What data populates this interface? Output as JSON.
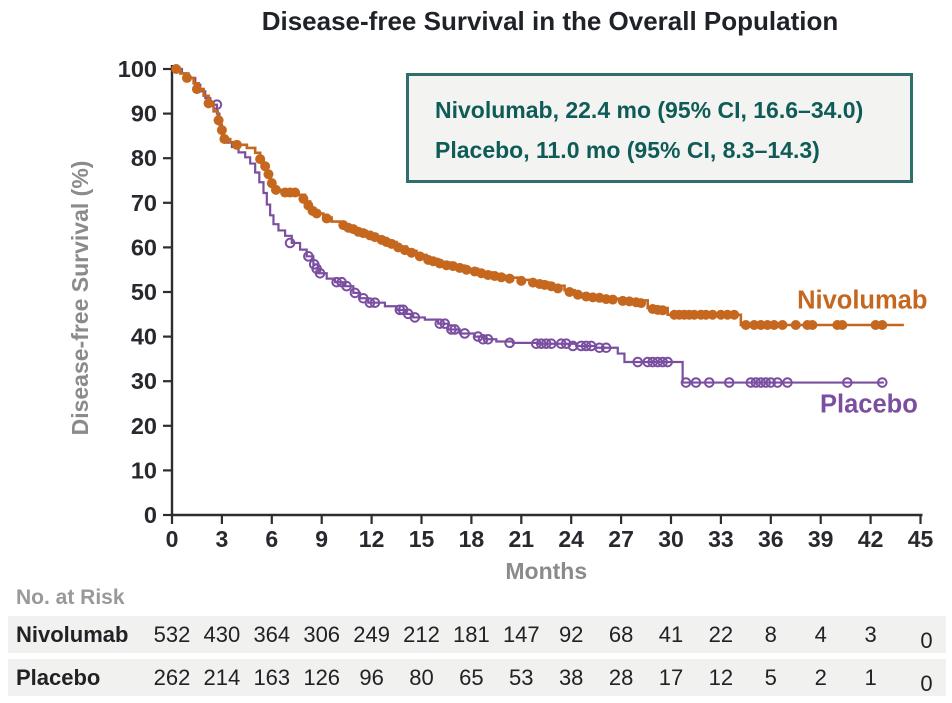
{
  "header": {
    "title": "Disease-free Survival in the Overall Population"
  },
  "legend": {
    "lines": [
      "Nivolumab, 22.4 mo (95% CI, 16.6–34.0)",
      "Placebo, 11.0 mo (95% CI, 8.3–14.3)"
    ],
    "border_color": "#2f6f6b",
    "text_color": "#0f5b57",
    "background": "#f3f4f1"
  },
  "chart_data": {
    "type": "line",
    "subtype": "kaplan-meier-step",
    "title": "Disease-free Survival in the Overall Population",
    "xlabel": "Months",
    "ylabel": "Disease-free Survival (%)",
    "xlim": [
      0,
      45
    ],
    "ylim": [
      0,
      100
    ],
    "x_ticks": [
      0,
      3,
      6,
      9,
      12,
      15,
      18,
      21,
      24,
      27,
      30,
      33,
      36,
      39,
      42,
      45
    ],
    "y_ticks": [
      0,
      10,
      20,
      30,
      40,
      50,
      60,
      70,
      80,
      90,
      100
    ],
    "grid": "off",
    "legend_position": "top-center-box",
    "axis_color": "#2b2d31",
    "tick_label_color": "#27292e",
    "axis_title_color": "#8a8b8d",
    "series": [
      {
        "name": "Placebo",
        "median_months": 11.0,
        "ci_95": "8.3-14.3",
        "color": "#7b4fa0",
        "marker": "open-circle",
        "label": {
          "x": 41.9,
          "y": 23.0
        },
        "steps": [
          [
            0,
            100
          ],
          [
            0.6,
            99
          ],
          [
            1,
            98
          ],
          [
            1.4,
            96.5
          ],
          [
            1.7,
            95
          ],
          [
            2,
            93.5
          ],
          [
            2.3,
            92
          ],
          [
            2.7,
            90
          ],
          [
            2.85,
            87.5
          ],
          [
            3,
            84.5
          ],
          [
            3.2,
            83.5
          ],
          [
            3.6,
            82.5
          ],
          [
            4,
            81.3
          ],
          [
            4.4,
            80.2
          ],
          [
            4.7,
            78.8
          ],
          [
            5,
            76.8
          ],
          [
            5.25,
            74.6
          ],
          [
            5.5,
            72.2
          ],
          [
            5.7,
            69.6
          ],
          [
            5.9,
            67.2
          ],
          [
            6.1,
            65.2
          ],
          [
            6.4,
            63.8
          ],
          [
            6.8,
            62.6
          ],
          [
            7.2,
            61
          ],
          [
            7.7,
            59.5
          ],
          [
            8.1,
            58
          ],
          [
            8.5,
            56.2
          ],
          [
            8.8,
            54.2
          ],
          [
            9.3,
            53
          ],
          [
            9.8,
            52.2
          ],
          [
            10.4,
            51.3
          ],
          [
            10.9,
            49.8
          ],
          [
            11.3,
            48.6
          ],
          [
            11.8,
            47.6
          ],
          [
            12.8,
            46.8
          ],
          [
            13.5,
            46
          ],
          [
            14,
            45.1
          ],
          [
            14.5,
            44.3
          ],
          [
            15.2,
            43.8
          ],
          [
            16,
            42.9
          ],
          [
            16.6,
            41.6
          ],
          [
            17.3,
            40.7
          ],
          [
            18.2,
            40
          ],
          [
            18.8,
            39.4
          ],
          [
            19.5,
            38.9
          ],
          [
            20.5,
            38.6
          ],
          [
            22,
            38.4
          ],
          [
            24.3,
            37.9
          ],
          [
            25.5,
            37.5
          ],
          [
            26.8,
            36.2
          ],
          [
            27.2,
            34.3
          ],
          [
            30.7,
            29.7
          ],
          [
            42.8,
            29.7
          ]
        ],
        "censor_marks": [
          [
            2.7,
            92
          ],
          [
            7.1,
            61
          ],
          [
            8.2,
            58
          ],
          [
            8.55,
            56.2
          ],
          [
            8.7,
            55.2
          ],
          [
            8.9,
            54.2
          ],
          [
            9.9,
            52.2
          ],
          [
            10.2,
            52.2
          ],
          [
            10.5,
            51.3
          ],
          [
            11,
            49.8
          ],
          [
            11.5,
            48.6
          ],
          [
            11.9,
            47.6
          ],
          [
            12.2,
            47.6
          ],
          [
            13.7,
            46
          ],
          [
            13.9,
            46
          ],
          [
            14.2,
            45.1
          ],
          [
            14.6,
            44.3
          ],
          [
            16.1,
            42.9
          ],
          [
            16.4,
            42.9
          ],
          [
            16.8,
            41.6
          ],
          [
            17,
            41.6
          ],
          [
            17.6,
            40.7
          ],
          [
            18.4,
            40
          ],
          [
            18.7,
            39.4
          ],
          [
            19,
            39.4
          ],
          [
            20.3,
            38.6
          ],
          [
            21.9,
            38.4
          ],
          [
            22.2,
            38.4
          ],
          [
            22.5,
            38.4
          ],
          [
            22.8,
            38.4
          ],
          [
            23.4,
            38.4
          ],
          [
            23.7,
            38.4
          ],
          [
            24.1,
            37.9
          ],
          [
            24.6,
            37.9
          ],
          [
            24.9,
            37.9
          ],
          [
            25.2,
            37.9
          ],
          [
            25.7,
            37.5
          ],
          [
            26.1,
            37.5
          ],
          [
            28,
            34.3
          ],
          [
            28.6,
            34.3
          ],
          [
            28.9,
            34.3
          ],
          [
            29.2,
            34.3
          ],
          [
            29.5,
            34.3
          ],
          [
            29.8,
            34.3
          ],
          [
            30.9,
            29.7
          ],
          [
            31.5,
            29.7
          ],
          [
            32.3,
            29.7
          ],
          [
            33.5,
            29.7
          ],
          [
            34.8,
            29.7
          ],
          [
            35.1,
            29.7
          ],
          [
            35.4,
            29.7
          ],
          [
            35.7,
            29.7
          ],
          [
            36,
            29.7
          ],
          [
            36.4,
            29.7
          ],
          [
            37,
            29.7
          ],
          [
            40.6,
            29.7
          ],
          [
            42.7,
            29.7
          ]
        ]
      },
      {
        "name": "Nivolumab",
        "median_months": 22.4,
        "ci_95": "16.6-34.0",
        "color": "#c5671e",
        "marker": "filled-circle",
        "label": {
          "x": 41.5,
          "y": 46.3
        },
        "steps": [
          [
            0,
            100
          ],
          [
            0.5,
            99
          ],
          [
            0.9,
            98
          ],
          [
            1.3,
            96.8
          ],
          [
            1.6,
            95.5
          ],
          [
            1.9,
            94
          ],
          [
            2.2,
            92.3
          ],
          [
            2.5,
            90.5
          ],
          [
            2.75,
            88.5
          ],
          [
            2.95,
            86.3
          ],
          [
            3.1,
            84.3
          ],
          [
            3.5,
            83.6
          ],
          [
            4,
            83
          ],
          [
            4.5,
            82.3
          ],
          [
            5,
            81.2
          ],
          [
            5.3,
            79.8
          ],
          [
            5.5,
            78.2
          ],
          [
            5.7,
            76.4
          ],
          [
            5.95,
            74.4
          ],
          [
            6.2,
            72.9
          ],
          [
            6.6,
            72.3
          ],
          [
            7.6,
            71.8
          ],
          [
            8,
            70.3
          ],
          [
            8.3,
            68.8
          ],
          [
            8.6,
            67.6
          ],
          [
            9.1,
            66.7
          ],
          [
            9.6,
            65.8
          ],
          [
            10.1,
            65.1
          ],
          [
            10.6,
            64.4
          ],
          [
            11.1,
            63.7
          ],
          [
            11.7,
            62.9
          ],
          [
            12.3,
            62.1
          ],
          [
            12.9,
            61.2
          ],
          [
            13.5,
            60.2
          ],
          [
            14.1,
            59.2
          ],
          [
            14.7,
            58.3
          ],
          [
            15.3,
            57.4
          ],
          [
            16,
            56.6
          ],
          [
            16.8,
            55.9
          ],
          [
            17.6,
            55.2
          ],
          [
            18.4,
            54.4
          ],
          [
            19.2,
            53.7
          ],
          [
            20,
            53.2
          ],
          [
            20.8,
            52.7
          ],
          [
            21.6,
            52.2
          ],
          [
            22.6,
            51.4
          ],
          [
            23.6,
            50.4
          ],
          [
            24.2,
            49.6
          ],
          [
            25,
            49
          ],
          [
            26,
            48.5
          ],
          [
            27,
            48.1
          ],
          [
            28.6,
            46.4
          ],
          [
            29.8,
            44.9
          ],
          [
            34.2,
            42.6
          ],
          [
            44,
            42.6
          ]
        ],
        "censor_marks": [
          [
            0.25,
            100
          ],
          [
            0.9,
            98
          ],
          [
            1.5,
            95.5
          ],
          [
            2.2,
            92.3
          ],
          [
            2.8,
            88.5
          ],
          [
            3,
            86.3
          ],
          [
            3.15,
            84.3
          ],
          [
            3.9,
            83
          ],
          [
            5.3,
            79.8
          ],
          [
            5.6,
            78.2
          ],
          [
            5.8,
            76.4
          ],
          [
            6,
            74.4
          ],
          [
            6.25,
            72.9
          ],
          [
            6.8,
            72.3
          ],
          [
            7.1,
            72.3
          ],
          [
            7.4,
            72.3
          ],
          [
            7.9,
            70.9
          ],
          [
            8.2,
            69.4
          ],
          [
            8.45,
            68.2
          ],
          [
            8.7,
            67.6
          ],
          [
            9.3,
            66.5
          ],
          [
            10.3,
            65
          ],
          [
            10.6,
            64.4
          ],
          [
            10.9,
            64.1
          ],
          [
            11.2,
            63.5
          ],
          [
            11.5,
            63.2
          ],
          [
            11.9,
            62.7
          ],
          [
            12.2,
            62.3
          ],
          [
            12.6,
            61.7
          ],
          [
            12.9,
            61.2
          ],
          [
            13.2,
            60.8
          ],
          [
            13.6,
            60
          ],
          [
            14,
            59.4
          ],
          [
            14.4,
            58.8
          ],
          [
            14.9,
            58
          ],
          [
            15.4,
            57.2
          ],
          [
            15.7,
            56.9
          ],
          [
            16.1,
            56.4
          ],
          [
            16.5,
            56
          ],
          [
            16.9,
            55.8
          ],
          [
            17.3,
            55.4
          ],
          [
            17.7,
            55
          ],
          [
            18.2,
            54.6
          ],
          [
            18.6,
            54.2
          ],
          [
            19,
            53.8
          ],
          [
            19.4,
            53.6
          ],
          [
            19.8,
            53.3
          ],
          [
            20.3,
            53
          ],
          [
            21,
            52.5
          ],
          [
            21.7,
            52.1
          ],
          [
            22.1,
            51.8
          ],
          [
            22.4,
            51.6
          ],
          [
            22.8,
            51.3
          ],
          [
            23.2,
            50.8
          ],
          [
            23.9,
            50
          ],
          [
            24.4,
            49.4
          ],
          [
            24.9,
            49
          ],
          [
            25.3,
            48.8
          ],
          [
            25.7,
            48.7
          ],
          [
            26.1,
            48.4
          ],
          [
            26.5,
            48.3
          ],
          [
            27.1,
            48
          ],
          [
            27.5,
            47.9
          ],
          [
            27.9,
            47.7
          ],
          [
            28.2,
            47.5
          ],
          [
            28.9,
            46.2
          ],
          [
            29.2,
            46
          ],
          [
            29.5,
            45.9
          ],
          [
            30.2,
            44.9
          ],
          [
            30.5,
            44.9
          ],
          [
            30.8,
            44.9
          ],
          [
            31.1,
            44.9
          ],
          [
            31.4,
            44.9
          ],
          [
            31.8,
            44.9
          ],
          [
            32.1,
            44.9
          ],
          [
            32.5,
            44.9
          ],
          [
            33,
            44.9
          ],
          [
            33.4,
            44.9
          ],
          [
            33.8,
            44.9
          ],
          [
            34.5,
            42.6
          ],
          [
            35,
            42.6
          ],
          [
            35.4,
            42.6
          ],
          [
            35.8,
            42.6
          ],
          [
            36.2,
            42.6
          ],
          [
            36.7,
            42.6
          ],
          [
            37.5,
            42.6
          ],
          [
            38.2,
            42.6
          ],
          [
            38.5,
            42.6
          ],
          [
            40,
            42.6
          ],
          [
            40.3,
            42.6
          ],
          [
            42.3,
            42.6
          ],
          [
            42.7,
            42.6
          ]
        ]
      }
    ]
  },
  "risk_table": {
    "title": "No. at Risk",
    "months": [
      0,
      3,
      6,
      9,
      12,
      15,
      18,
      21,
      24,
      27,
      30,
      33,
      36,
      39,
      42,
      45
    ],
    "rows": [
      {
        "label": "Nivolumab",
        "counts": [
          532,
          430,
          364,
          306,
          249,
          212,
          181,
          147,
          92,
          68,
          41,
          22,
          8,
          4,
          3,
          0
        ]
      },
      {
        "label": "Placebo",
        "counts": [
          262,
          214,
          163,
          126,
          96,
          80,
          65,
          53,
          38,
          28,
          17,
          12,
          5,
          2,
          1,
          0
        ]
      }
    ]
  }
}
